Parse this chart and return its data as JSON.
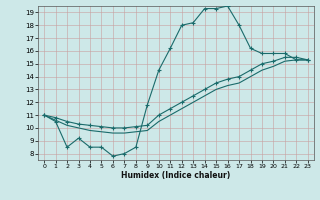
{
  "xlabel": "Humidex (Indice chaleur)",
  "bg_color": "#cde8e8",
  "line_color": "#1a6b6b",
  "xlim": [
    -0.5,
    23.5
  ],
  "ylim": [
    7.5,
    19.5
  ],
  "yticks": [
    8,
    9,
    10,
    11,
    12,
    13,
    14,
    15,
    16,
    17,
    18,
    19
  ],
  "xticks": [
    0,
    1,
    2,
    3,
    4,
    5,
    6,
    7,
    8,
    9,
    10,
    11,
    12,
    13,
    14,
    15,
    16,
    17,
    18,
    19,
    20,
    21,
    22,
    23
  ],
  "line1_x": [
    0,
    1,
    2,
    3,
    4,
    5,
    6,
    7,
    8,
    9,
    10,
    11,
    12,
    13,
    14,
    15,
    16,
    17,
    18,
    19,
    20,
    21,
    22,
    23
  ],
  "line1_y": [
    11.0,
    10.5,
    8.5,
    9.2,
    8.5,
    8.5,
    7.8,
    8.0,
    8.5,
    11.8,
    14.5,
    16.2,
    18.0,
    18.2,
    19.3,
    19.3,
    19.5,
    18.0,
    16.2,
    15.8,
    15.8,
    15.8,
    15.3,
    15.3
  ],
  "line2_x": [
    0,
    1,
    2,
    3,
    4,
    5,
    6,
    7,
    8,
    9,
    10,
    11,
    12,
    13,
    14,
    15,
    16,
    17,
    18,
    19,
    20,
    21,
    22,
    23
  ],
  "line2_y": [
    11.0,
    10.8,
    10.5,
    10.3,
    10.2,
    10.1,
    10.0,
    10.0,
    10.1,
    10.2,
    11.0,
    11.5,
    12.0,
    12.5,
    13.0,
    13.5,
    13.8,
    14.0,
    14.5,
    15.0,
    15.2,
    15.5,
    15.5,
    15.3
  ],
  "line3_x": [
    0,
    1,
    2,
    3,
    4,
    5,
    6,
    7,
    8,
    9,
    10,
    11,
    12,
    13,
    14,
    15,
    16,
    17,
    18,
    19,
    20,
    21,
    22,
    23
  ],
  "line3_y": [
    11.0,
    10.6,
    10.2,
    10.0,
    9.8,
    9.7,
    9.6,
    9.6,
    9.7,
    9.8,
    10.5,
    11.0,
    11.5,
    12.0,
    12.5,
    13.0,
    13.3,
    13.5,
    14.0,
    14.5,
    14.8,
    15.2,
    15.3,
    15.3
  ]
}
